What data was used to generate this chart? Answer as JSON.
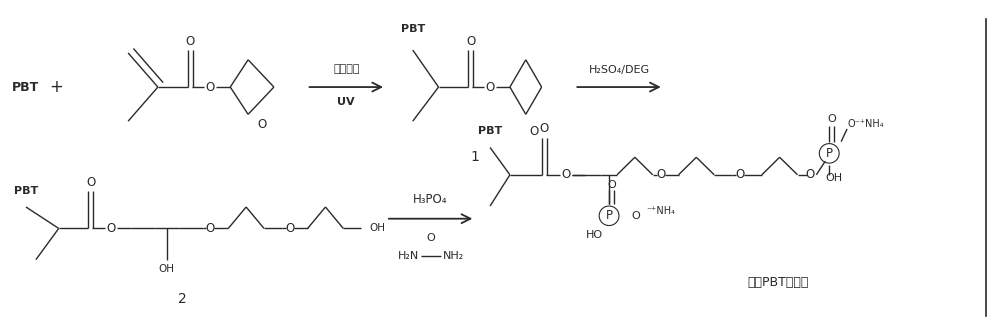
{
  "bg_color": "#ffffff",
  "line_color": "#2a2a2a",
  "figsize": [
    10.0,
    3.35
  ],
  "dpi": 100,
  "arrow1_label_top": "光引发剂",
  "arrow1_label_bot": "UV",
  "arrow2_label_top": "H₂SO₄/DEG",
  "arrow3_label_top": "H₃PO₄",
  "arrow3_label_mid_top": "O",
  "arrow3_label_mid_bot1": "H₂N",
  "arrow3_label_mid_bot2": "NH₂",
  "product_label": "改性PBT阵燃剂",
  "compound1_label": "1",
  "compound2_label": "2"
}
